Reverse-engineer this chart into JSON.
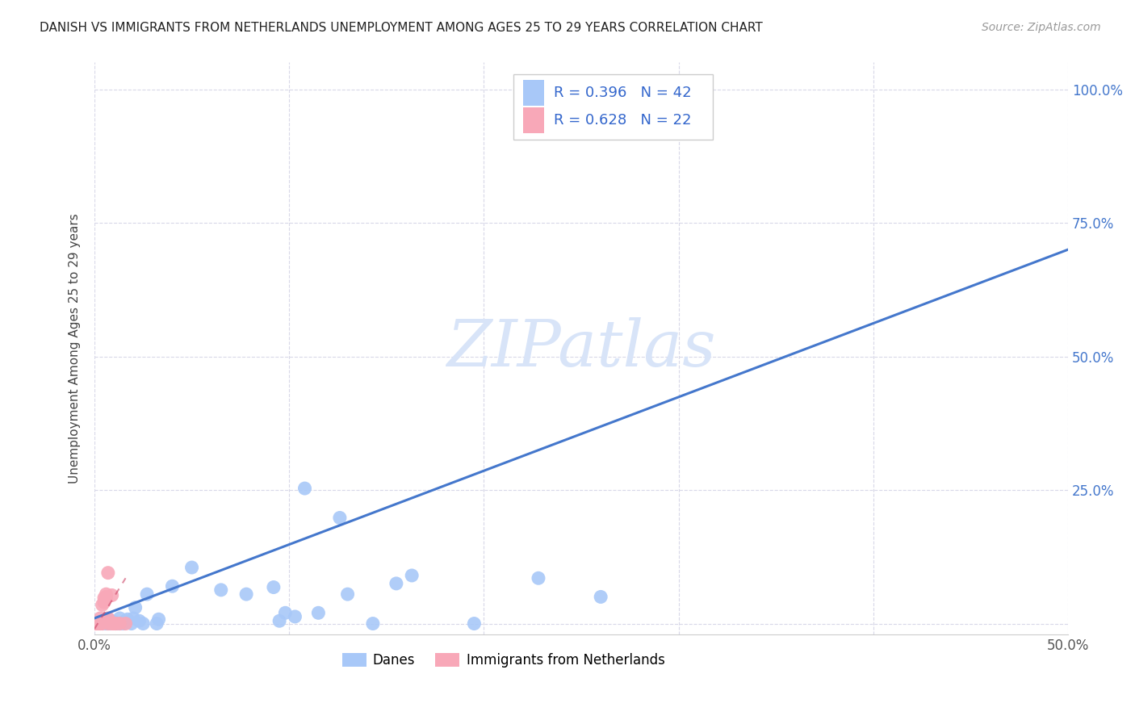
{
  "title": "DANISH VS IMMIGRANTS FROM NETHERLANDS UNEMPLOYMENT AMONG AGES 25 TO 29 YEARS CORRELATION CHART",
  "source": "Source: ZipAtlas.com",
  "ylabel": "Unemployment Among Ages 25 to 29 years",
  "xlim": [
    0,
    0.5
  ],
  "ylim": [
    0,
    1.05
  ],
  "legend_labels": [
    "Danes",
    "Immigrants from Netherlands"
  ],
  "R_danes": 0.396,
  "N_danes": 42,
  "R_immigrants": 0.628,
  "N_immigrants": 22,
  "danes_color": "#a8c8f8",
  "immigrants_color": "#f8a8b8",
  "danes_line_color": "#4477cc",
  "immigrants_line_color": "#cc4466",
  "danes_scatter": [
    [
      0.002,
      0.0
    ],
    [
      0.004,
      0.0
    ],
    [
      0.004,
      0.005
    ],
    [
      0.006,
      0.0
    ],
    [
      0.007,
      0.0
    ],
    [
      0.007,
      0.005
    ],
    [
      0.008,
      0.0
    ],
    [
      0.009,
      0.005
    ],
    [
      0.01,
      0.003
    ],
    [
      0.011,
      0.0
    ],
    [
      0.012,
      0.0
    ],
    [
      0.013,
      0.0
    ],
    [
      0.013,
      0.01
    ],
    [
      0.015,
      0.0
    ],
    [
      0.016,
      0.005
    ],
    [
      0.017,
      0.008
    ],
    [
      0.019,
      0.0
    ],
    [
      0.02,
      0.01
    ],
    [
      0.021,
      0.03
    ],
    [
      0.023,
      0.005
    ],
    [
      0.025,
      0.0
    ],
    [
      0.027,
      0.055
    ],
    [
      0.032,
      0.0
    ],
    [
      0.033,
      0.008
    ],
    [
      0.04,
      0.07
    ],
    [
      0.05,
      0.105
    ],
    [
      0.065,
      0.063
    ],
    [
      0.078,
      0.055
    ],
    [
      0.092,
      0.068
    ],
    [
      0.095,
      0.005
    ],
    [
      0.098,
      0.02
    ],
    [
      0.103,
      0.013
    ],
    [
      0.115,
      0.02
    ],
    [
      0.13,
      0.055
    ],
    [
      0.143,
      0.0
    ],
    [
      0.155,
      0.075
    ],
    [
      0.163,
      0.09
    ],
    [
      0.195,
      0.0
    ],
    [
      0.228,
      0.085
    ],
    [
      0.26,
      0.05
    ],
    [
      0.108,
      0.253
    ],
    [
      0.126,
      0.198
    ]
  ],
  "immigrants_scatter": [
    [
      0.0,
      0.0
    ],
    [
      0.001,
      0.0
    ],
    [
      0.002,
      0.0
    ],
    [
      0.003,
      0.0
    ],
    [
      0.003,
      0.0
    ],
    [
      0.003,
      0.01
    ],
    [
      0.004,
      0.0
    ],
    [
      0.004,
      0.035
    ],
    [
      0.005,
      0.04
    ],
    [
      0.005,
      0.048
    ],
    [
      0.006,
      0.05
    ],
    [
      0.006,
      0.05
    ],
    [
      0.006,
      0.055
    ],
    [
      0.007,
      0.0
    ],
    [
      0.007,
      0.01
    ],
    [
      0.007,
      0.095
    ],
    [
      0.009,
      0.053
    ],
    [
      0.009,
      0.0
    ],
    [
      0.01,
      0.0
    ],
    [
      0.011,
      0.0
    ],
    [
      0.013,
      0.0
    ],
    [
      0.016,
      0.0
    ]
  ],
  "danes_line_x": [
    0.0,
    0.5
  ],
  "danes_line_y": [
    0.01,
    0.7
  ],
  "immigrants_line_x": [
    0.0,
    0.016
  ],
  "immigrants_line_y": [
    -0.01,
    0.085
  ],
  "background_color": "#ffffff",
  "grid_color": "#d8d8e8",
  "watermark_color": "#d8e4f8"
}
